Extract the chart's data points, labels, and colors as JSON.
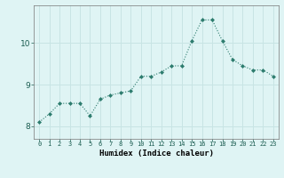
{
  "x": [
    0,
    1,
    2,
    3,
    4,
    5,
    6,
    7,
    8,
    9,
    10,
    11,
    12,
    13,
    14,
    15,
    16,
    17,
    18,
    19,
    20,
    21,
    22,
    23
  ],
  "y": [
    8.1,
    8.3,
    8.55,
    8.55,
    8.55,
    8.25,
    8.65,
    8.75,
    8.8,
    8.85,
    9.2,
    9.2,
    9.3,
    9.45,
    9.45,
    10.05,
    10.55,
    10.55,
    10.05,
    9.6,
    9.45,
    9.35,
    9.35,
    9.2
  ],
  "line_color": "#2d7c6e",
  "marker": "D",
  "marker_size": 2.0,
  "linewidth": 0.8,
  "xlabel": "Humidex (Indice chaleur)",
  "bg_color": "#dff4f4",
  "grid_color": "#c8e4e4",
  "xlim": [
    -0.5,
    23.5
  ],
  "ylim": [
    7.7,
    10.9
  ],
  "yticks": [
    8,
    9,
    10
  ],
  "xticks": [
    0,
    1,
    2,
    3,
    4,
    5,
    6,
    7,
    8,
    9,
    10,
    11,
    12,
    13,
    14,
    15,
    16,
    17,
    18,
    19,
    20,
    21,
    22,
    23
  ]
}
